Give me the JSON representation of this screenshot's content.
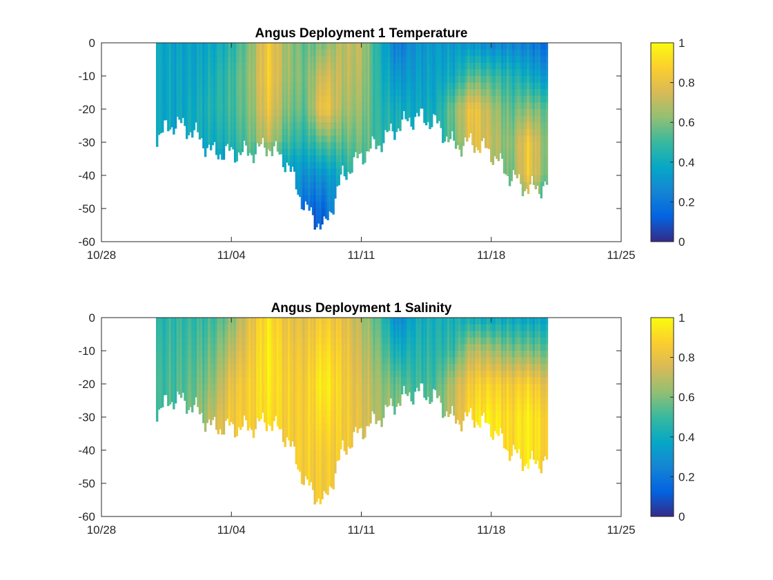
{
  "chart_data": [
    {
      "type": "heatmap",
      "title": "Angus Deployment 1 Temperature",
      "xlabel": "",
      "ylabel": "",
      "x_axis": {
        "type": "date",
        "range": [
          "10/28",
          "11/25"
        ],
        "ticks": [
          "10/28",
          "11/04",
          "11/11",
          "11/18",
          "11/25"
        ]
      },
      "y_axis": {
        "range": [
          -60,
          0
        ],
        "ticks": [
          0,
          -10,
          -20,
          -30,
          -40,
          -50,
          -60
        ]
      },
      "colorbar": {
        "range": [
          0,
          1
        ],
        "ticks": [
          1,
          0.8,
          0.6,
          0.4,
          0.2,
          0
        ],
        "colormap": "parula"
      },
      "grid": false,
      "legend": "none",
      "data_extent": {
        "start": "10/31",
        "end": "11/21"
      },
      "x": [
        "10/31",
        "11/01",
        "11/02",
        "11/03",
        "11/04",
        "11/05",
        "11/06",
        "11/07",
        "11/08",
        "11/09",
        "11/10",
        "11/11",
        "11/12",
        "11/13",
        "11/14",
        "11/15",
        "11/16",
        "11/17",
        "11/18",
        "11/19",
        "11/20",
        "11/21"
      ],
      "bottom_depth": [
        -28,
        -24,
        -27,
        -33,
        -33,
        -33,
        -31,
        -36,
        -50,
        -56,
        -40,
        -34,
        -30,
        -25,
        -22,
        -24,
        -31,
        -30,
        -33,
        -40,
        -44,
        -43
      ],
      "profiles": [
        {
          "x": "10/31",
          "depth": [
            0,
            -10,
            -20,
            -28
          ],
          "value": [
            0.38,
            0.38,
            0.38,
            0.38
          ]
        },
        {
          "x": "11/01",
          "depth": [
            0,
            -10,
            -20,
            -24
          ],
          "value": [
            0.36,
            0.37,
            0.37,
            0.37
          ]
        },
        {
          "x": "11/02",
          "depth": [
            0,
            -10,
            -20,
            -27
          ],
          "value": [
            0.36,
            0.37,
            0.4,
            0.4
          ]
        },
        {
          "x": "11/03",
          "depth": [
            0,
            -10,
            -20,
            -30,
            -33
          ],
          "value": [
            0.38,
            0.42,
            0.44,
            0.4,
            0.35
          ]
        },
        {
          "x": "11/04",
          "depth": [
            0,
            -10,
            -20,
            -30,
            -33
          ],
          "value": [
            0.45,
            0.5,
            0.5,
            0.45,
            0.4
          ]
        },
        {
          "x": "11/05",
          "depth": [
            0,
            -10,
            -20,
            -30,
            -33
          ],
          "value": [
            0.6,
            0.62,
            0.6,
            0.56,
            0.52
          ]
        },
        {
          "x": "11/06",
          "depth": [
            0,
            -10,
            -20,
            -30,
            -31
          ],
          "value": [
            0.85,
            0.86,
            0.82,
            0.7,
            0.62
          ]
        },
        {
          "x": "11/07",
          "depth": [
            0,
            -10,
            -20,
            -30,
            -36
          ],
          "value": [
            0.65,
            0.64,
            0.6,
            0.5,
            0.38
          ]
        },
        {
          "x": "11/08",
          "depth": [
            0,
            -10,
            -20,
            -30,
            -40,
            -50
          ],
          "value": [
            0.55,
            0.58,
            0.55,
            0.45,
            0.28,
            0.15
          ]
        },
        {
          "x": "11/09",
          "depth": [
            0,
            -10,
            -20,
            -30,
            -40,
            -50,
            -56
          ],
          "value": [
            0.6,
            0.75,
            0.85,
            0.55,
            0.3,
            0.15,
            0.1
          ]
        },
        {
          "x": "11/10",
          "depth": [
            0,
            -10,
            -20,
            -30,
            -40
          ],
          "value": [
            0.7,
            0.7,
            0.66,
            0.55,
            0.4
          ]
        },
        {
          "x": "11/11",
          "depth": [
            0,
            -10,
            -20,
            -30,
            -34
          ],
          "value": [
            0.7,
            0.68,
            0.64,
            0.58,
            0.55
          ]
        },
        {
          "x": "11/12",
          "depth": [
            0,
            -10,
            -20,
            -30
          ],
          "value": [
            0.42,
            0.44,
            0.46,
            0.48
          ]
        },
        {
          "x": "11/13",
          "depth": [
            0,
            -10,
            -20,
            -25
          ],
          "value": [
            0.2,
            0.3,
            0.4,
            0.42
          ]
        },
        {
          "x": "11/14",
          "depth": [
            0,
            -10,
            -20,
            -22
          ],
          "value": [
            0.3,
            0.34,
            0.38,
            0.4
          ]
        },
        {
          "x": "11/15",
          "depth": [
            0,
            -10,
            -20,
            -24
          ],
          "value": [
            0.33,
            0.36,
            0.4,
            0.42
          ]
        },
        {
          "x": "11/16",
          "depth": [
            0,
            -10,
            -20,
            -30,
            -31
          ],
          "value": [
            0.32,
            0.4,
            0.6,
            0.55,
            0.5
          ]
        },
        {
          "x": "11/17",
          "depth": [
            0,
            -10,
            -20,
            -30
          ],
          "value": [
            0.3,
            0.55,
            0.84,
            0.8
          ]
        },
        {
          "x": "11/18",
          "depth": [
            0,
            -10,
            -20,
            -30,
            -33
          ],
          "value": [
            0.25,
            0.5,
            0.68,
            0.72,
            0.7
          ]
        },
        {
          "x": "11/19",
          "depth": [
            0,
            -10,
            -20,
            -30,
            -40
          ],
          "value": [
            0.25,
            0.45,
            0.55,
            0.6,
            0.55
          ]
        },
        {
          "x": "11/20",
          "depth": [
            0,
            -10,
            -20,
            -30,
            -40,
            -44
          ],
          "value": [
            0.22,
            0.4,
            0.62,
            0.84,
            0.84,
            0.7
          ]
        },
        {
          "x": "11/21",
          "depth": [
            0,
            -10,
            -20,
            -30,
            -40,
            -43
          ],
          "value": [
            0.15,
            0.3,
            0.55,
            0.6,
            0.58,
            0.5
          ]
        }
      ]
    },
    {
      "type": "heatmap",
      "title": "Angus Deployment 1 Salinity",
      "xlabel": "",
      "ylabel": "",
      "x_axis": {
        "type": "date",
        "range": [
          "10/28",
          "11/25"
        ],
        "ticks": [
          "10/28",
          "11/04",
          "11/11",
          "11/18",
          "11/25"
        ]
      },
      "y_axis": {
        "range": [
          -60,
          0
        ],
        "ticks": [
          0,
          -10,
          -20,
          -30,
          -40,
          -50,
          -60
        ]
      },
      "colorbar": {
        "range": [
          0,
          1
        ],
        "ticks": [
          1,
          0.8,
          0.6,
          0.4,
          0.2,
          0
        ],
        "colormap": "parula"
      },
      "grid": false,
      "legend": "none",
      "data_extent": {
        "start": "10/31",
        "end": "11/21"
      },
      "x": [
        "10/31",
        "11/01",
        "11/02",
        "11/03",
        "11/04",
        "11/05",
        "11/06",
        "11/07",
        "11/08",
        "11/09",
        "11/10",
        "11/11",
        "11/12",
        "11/13",
        "11/14",
        "11/15",
        "11/16",
        "11/17",
        "11/18",
        "11/19",
        "11/20",
        "11/21"
      ],
      "bottom_depth": [
        -28,
        -24,
        -27,
        -33,
        -33,
        -33,
        -31,
        -36,
        -50,
        -56,
        -40,
        -34,
        -30,
        -25,
        -22,
        -24,
        -31,
        -30,
        -33,
        -40,
        -44,
        -43
      ],
      "profiles": [
        {
          "x": "10/31",
          "depth": [
            0,
            -10,
            -20,
            -28
          ],
          "value": [
            0.45,
            0.48,
            0.5,
            0.48
          ]
        },
        {
          "x": "11/01",
          "depth": [
            0,
            -10,
            -20,
            -24
          ],
          "value": [
            0.48,
            0.5,
            0.52,
            0.52
          ]
        },
        {
          "x": "11/02",
          "depth": [
            0,
            -10,
            -20,
            -27
          ],
          "value": [
            0.48,
            0.52,
            0.56,
            0.58
          ]
        },
        {
          "x": "11/03",
          "depth": [
            0,
            -10,
            -20,
            -30,
            -33
          ],
          "value": [
            0.5,
            0.56,
            0.62,
            0.7,
            0.72
          ]
        },
        {
          "x": "11/04",
          "depth": [
            0,
            -10,
            -20,
            -30,
            -33
          ],
          "value": [
            0.6,
            0.7,
            0.8,
            0.84,
            0.84
          ]
        },
        {
          "x": "11/05",
          "depth": [
            0,
            -10,
            -20,
            -30,
            -33
          ],
          "value": [
            0.78,
            0.82,
            0.86,
            0.86,
            0.85
          ]
        },
        {
          "x": "11/06",
          "depth": [
            0,
            -10,
            -20,
            -30,
            -31
          ],
          "value": [
            0.94,
            0.96,
            0.95,
            0.93,
            0.92
          ]
        },
        {
          "x": "11/07",
          "depth": [
            0,
            -10,
            -20,
            -30,
            -36
          ],
          "value": [
            0.8,
            0.84,
            0.86,
            0.86,
            0.85
          ]
        },
        {
          "x": "11/08",
          "depth": [
            0,
            -10,
            -20,
            -30,
            -40,
            -50
          ],
          "value": [
            0.78,
            0.82,
            0.85,
            0.86,
            0.86,
            0.85
          ]
        },
        {
          "x": "11/09",
          "depth": [
            0,
            -10,
            -20,
            -30,
            -40,
            -50,
            -56
          ],
          "value": [
            0.85,
            0.92,
            0.97,
            0.92,
            0.86,
            0.84,
            0.84
          ]
        },
        {
          "x": "11/10",
          "depth": [
            0,
            -10,
            -20,
            -30,
            -40
          ],
          "value": [
            0.8,
            0.84,
            0.86,
            0.86,
            0.85
          ]
        },
        {
          "x": "11/11",
          "depth": [
            0,
            -10,
            -20,
            -30,
            -34
          ],
          "value": [
            0.68,
            0.72,
            0.76,
            0.78,
            0.78
          ]
        },
        {
          "x": "11/12",
          "depth": [
            0,
            -10,
            -20,
            -30
          ],
          "value": [
            0.52,
            0.58,
            0.64,
            0.66
          ]
        },
        {
          "x": "11/13",
          "depth": [
            0,
            -10,
            -20,
            -25
          ],
          "value": [
            0.25,
            0.4,
            0.55,
            0.58
          ]
        },
        {
          "x": "11/14",
          "depth": [
            0,
            -10,
            -20,
            -22
          ],
          "value": [
            0.4,
            0.45,
            0.5,
            0.52
          ]
        },
        {
          "x": "11/15",
          "depth": [
            0,
            -10,
            -20,
            -24
          ],
          "value": [
            0.42,
            0.46,
            0.52,
            0.55
          ]
        },
        {
          "x": "11/16",
          "depth": [
            0,
            -10,
            -20,
            -30,
            -31
          ],
          "value": [
            0.42,
            0.5,
            0.7,
            0.72,
            0.72
          ]
        },
        {
          "x": "11/17",
          "depth": [
            0,
            -10,
            -20,
            -30
          ],
          "value": [
            0.4,
            0.7,
            0.86,
            0.92
          ]
        },
        {
          "x": "11/18",
          "depth": [
            0,
            -10,
            -20,
            -30,
            -33
          ],
          "value": [
            0.38,
            0.66,
            0.88,
            0.96,
            0.96
          ]
        },
        {
          "x": "11/19",
          "depth": [
            0,
            -10,
            -20,
            -30,
            -40
          ],
          "value": [
            0.38,
            0.6,
            0.84,
            0.9,
            0.88
          ]
        },
        {
          "x": "11/20",
          "depth": [
            0,
            -10,
            -20,
            -30,
            -40,
            -44
          ],
          "value": [
            0.36,
            0.6,
            0.88,
            0.97,
            0.97,
            0.95
          ]
        },
        {
          "x": "11/21",
          "depth": [
            0,
            -10,
            -20,
            -30,
            -40,
            -43
          ],
          "value": [
            0.36,
            0.55,
            0.78,
            0.86,
            0.86,
            0.84
          ]
        }
      ]
    }
  ]
}
